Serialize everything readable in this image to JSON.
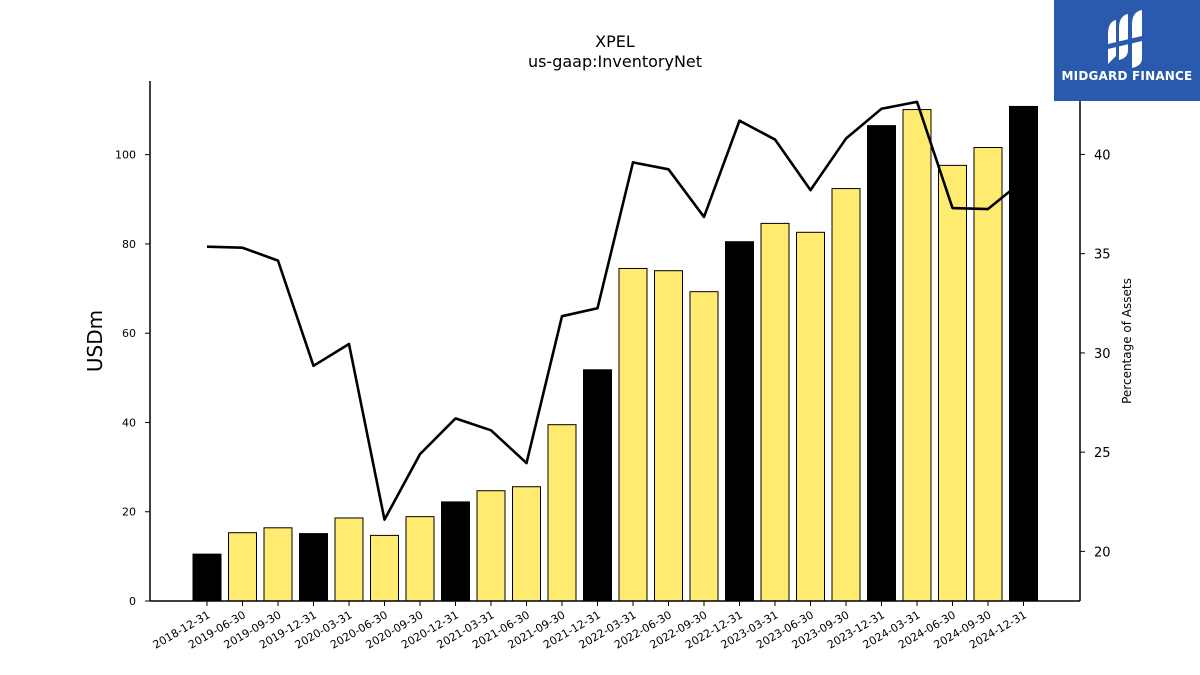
{
  "chart_data": {
    "type": "bar",
    "title": "XPEL",
    "subtitle": "us-gaap:InventoryNet",
    "ylabel": "USDm",
    "y2label": "Percentage of Assets",
    "ylim": [
      0,
      116.5
    ],
    "y2lim": [
      17.5,
      43.7
    ],
    "yticks": [
      0,
      20,
      40,
      60,
      80,
      100
    ],
    "y2ticks": [
      20,
      25,
      30,
      35,
      40
    ],
    "categories": [
      "2018-12-31",
      "2019-06-30",
      "2019-09-30",
      "2019-12-31",
      "2020-03-31",
      "2020-06-30",
      "2020-09-30",
      "2020-12-31",
      "2021-03-31",
      "2021-06-30",
      "2021-09-30",
      "2021-12-31",
      "2022-03-31",
      "2022-06-30",
      "2022-09-30",
      "2022-12-31",
      "2023-03-31",
      "2023-06-30",
      "2023-09-30",
      "2023-12-31",
      "2024-03-31",
      "2024-06-30",
      "2024-09-30",
      "2024-12-31"
    ],
    "series": [
      {
        "kind": "bar",
        "axis": "left",
        "values": [
          10.5,
          15.3,
          16.4,
          15.1,
          18.6,
          14.7,
          18.9,
          22.2,
          24.7,
          25.6,
          39.5,
          51.8,
          74.5,
          74.0,
          69.3,
          80.5,
          84.6,
          82.6,
          92.4,
          106.5,
          110.1,
          97.6,
          101.6,
          110.8
        ],
        "colors": [
          "#000000",
          "#ffeb70",
          "#ffeb70",
          "#000000",
          "#ffeb70",
          "#ffeb70",
          "#ffeb70",
          "#000000",
          "#ffeb70",
          "#ffeb70",
          "#ffeb70",
          "#000000",
          "#ffeb70",
          "#ffeb70",
          "#ffeb70",
          "#000000",
          "#ffeb70",
          "#ffeb70",
          "#ffeb70",
          "#000000",
          "#ffeb70",
          "#ffeb70",
          "#ffeb70",
          "#000000"
        ]
      },
      {
        "kind": "line",
        "axis": "right",
        "color": "#000000",
        "values": [
          35.35,
          35.3,
          34.65,
          29.35,
          30.45,
          21.6,
          24.9,
          26.7,
          26.1,
          24.45,
          31.85,
          32.25,
          39.6,
          39.25,
          36.85,
          41.7,
          40.75,
          38.2,
          40.8,
          42.3,
          42.65,
          37.3,
          37.25,
          38.7
        ]
      }
    ],
    "grid": false,
    "legend": "none"
  },
  "logo": {
    "text": "MIDGARD FINANCE"
  }
}
